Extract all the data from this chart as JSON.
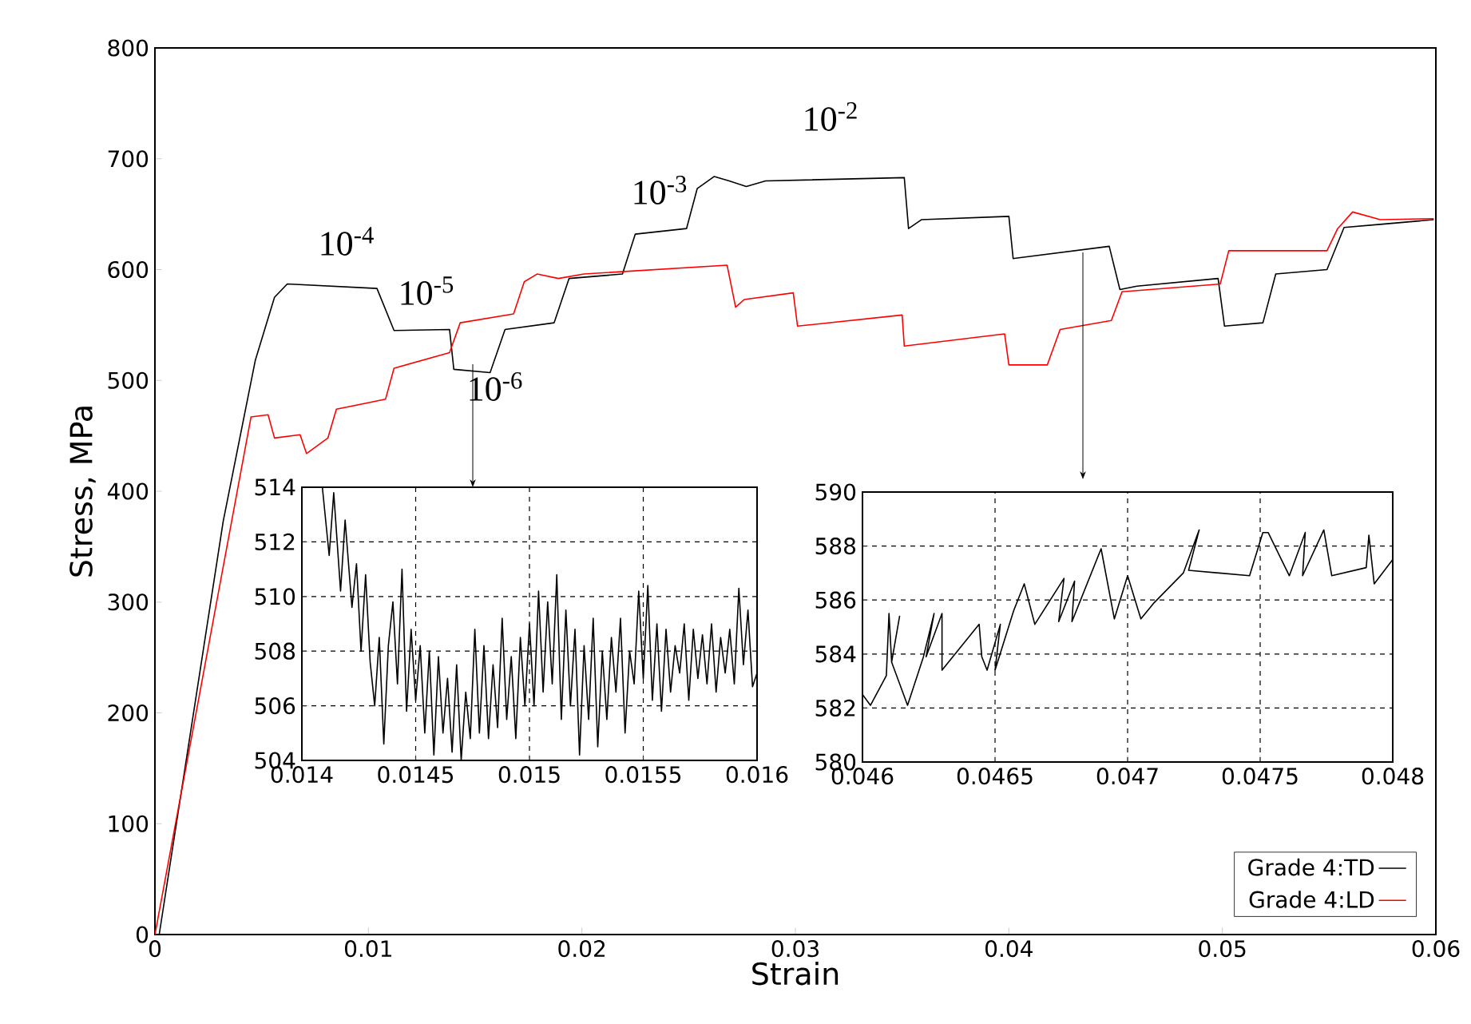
{
  "chart_data": [
    {
      "type": "line",
      "xlabel": "Strain",
      "ylabel": "Stress, MPa",
      "xlim": [
        0,
        0.06
      ],
      "ylim": [
        0,
        800
      ],
      "xticks": [
        0,
        0.01,
        0.02,
        0.03,
        0.04,
        0.05,
        0.06
      ],
      "yticks": [
        0,
        100,
        200,
        300,
        400,
        500,
        600,
        700,
        800
      ],
      "legend": "bottom right",
      "series": [
        {
          "name": "Grade 4:TD",
          "color": "#000000",
          "x": [
            0.0002,
            0.0032,
            0.0047,
            0.0056,
            0.0062,
            0.0104,
            0.0112,
            0.0138,
            0.014,
            0.0157,
            0.0164,
            0.0187,
            0.0194,
            0.0219,
            0.0225,
            0.0249,
            0.0254,
            0.0262,
            0.0269,
            0.0277,
            0.0286,
            0.0351,
            0.0353,
            0.0359,
            0.04,
            0.0402,
            0.0447,
            0.0452,
            0.046,
            0.0498,
            0.0501,
            0.0519,
            0.0525,
            0.0549,
            0.0557,
            0.0575,
            0.0599
          ],
          "values": [
            0,
            373,
            518,
            575,
            587,
            583,
            545,
            546,
            510,
            507,
            546,
            552,
            592,
            596,
            632,
            637,
            673,
            684,
            680,
            675,
            680,
            683,
            637,
            645,
            648,
            610,
            621,
            582,
            585,
            592,
            549,
            552,
            596,
            600,
            638,
            641,
            645
          ]
        },
        {
          "name": "Grade 4:LD",
          "color": "#ff0000",
          "x": [
            0,
            0.0045,
            0.0053,
            0.0056,
            0.0068,
            0.0071,
            0.0081,
            0.0085,
            0.0108,
            0.0112,
            0.0138,
            0.0143,
            0.0168,
            0.0173,
            0.0179,
            0.0189,
            0.0201,
            0.0268,
            0.0272,
            0.0276,
            0.0299,
            0.0301,
            0.035,
            0.0351,
            0.0398,
            0.04,
            0.0418,
            0.0424,
            0.0448,
            0.0453,
            0.0499,
            0.0503,
            0.0549,
            0.0554,
            0.0561,
            0.0574,
            0.0599
          ],
          "values": [
            0,
            467,
            469,
            448,
            451,
            434,
            448,
            474,
            483,
            511,
            525,
            552,
            560,
            589,
            596,
            592,
            596,
            604,
            566,
            573,
            579,
            549,
            559,
            531,
            542,
            514,
            514,
            546,
            554,
            580,
            587,
            617,
            617,
            637,
            652,
            645,
            646
          ]
        }
      ],
      "annotations": [
        "10$^{-4}$",
        "10$^{-5}$",
        "10$^{-6}$",
        "10$^{-3}$",
        "10$^{-2}$"
      ]
    },
    {
      "type": "line",
      "xlim": [
        0.014,
        0.016
      ],
      "ylim": [
        504,
        514
      ],
      "xticks": [
        0.014,
        0.0145,
        0.015,
        0.0155,
        0.016
      ],
      "yticks": [
        504,
        506,
        508,
        510,
        512,
        514
      ],
      "grid": true,
      "series": [
        {
          "color": "#000000",
          "x": [
            0.01409,
            0.01412,
            0.01414,
            0.01417,
            0.01419,
            0.01422,
            0.01424,
            0.01426,
            0.01428,
            0.0143,
            0.01432,
            0.01434,
            0.01436,
            0.01438,
            0.0144,
            0.01442,
            0.01444,
            0.01446,
            0.01448,
            0.0145,
            0.01452,
            0.01454,
            0.01456,
            0.01458,
            0.0146,
            0.01462,
            0.01464,
            0.01466,
            0.01468,
            0.0147,
            0.01472,
            0.01474,
            0.01476,
            0.01478,
            0.0148,
            0.01482,
            0.01484,
            0.01486,
            0.01488,
            0.0149,
            0.01492,
            0.01494,
            0.01496,
            0.01498,
            0.015,
            0.01502,
            0.01504,
            0.01506,
            0.01508,
            0.0151,
            0.01512,
            0.01514,
            0.01516,
            0.01518,
            0.0152,
            0.01522,
            0.01524,
            0.01526,
            0.01528,
            0.0153,
            0.01532,
            0.01534,
            0.01536,
            0.01538,
            0.0154,
            0.01542,
            0.01544,
            0.01546,
            0.01548,
            0.0155,
            0.01552,
            0.01554,
            0.01556,
            0.01558,
            0.0156,
            0.01562,
            0.01564,
            0.01566,
            0.01568,
            0.0157,
            0.01572,
            0.01574,
            0.01576,
            0.01578,
            0.0158,
            0.01582,
            0.01584,
            0.01586,
            0.01588,
            0.0159,
            0.01592,
            0.01594,
            0.01596,
            0.01598,
            0.016
          ],
          "values": [
            514,
            511.5,
            513.8,
            510.2,
            512.8,
            509.6,
            511.2,
            508.0,
            510.8,
            507.6,
            506.0,
            508.5,
            504.6,
            508.2,
            509.8,
            506.8,
            511.0,
            505.8,
            508.8,
            506.2,
            508.2,
            505.0,
            508.0,
            504.2,
            507.8,
            505.0,
            507.0,
            504.3,
            507.5,
            504.0,
            506.5,
            504.8,
            508.8,
            505.0,
            508.2,
            504.8,
            507.5,
            505.2,
            509.2,
            505.5,
            507.8,
            504.8,
            508.5,
            506.0,
            509.0,
            506.0,
            510.2,
            506.5,
            509.8,
            506.8,
            510.8,
            505.5,
            509.5,
            506.0,
            508.8,
            504.2,
            508.2,
            505.5,
            509.2,
            504.5,
            508.0,
            505.5,
            508.5,
            506.5,
            509.2,
            505.0,
            508.0,
            506.8,
            510.2,
            507.0,
            510.4,
            506.2,
            509.0,
            505.8,
            508.8,
            506.5,
            508.2,
            507.2,
            509.0,
            506.2,
            508.8,
            507.0,
            508.6,
            506.8,
            509.0,
            506.5,
            508.5,
            507.2,
            508.8,
            506.8,
            510.3,
            507.5,
            509.5,
            506.7,
            507.2
          ]
        }
      ]
    },
    {
      "type": "line",
      "xlim": [
        0.046,
        0.048
      ],
      "ylim": [
        580,
        590
      ],
      "xticks": [
        0.046,
        0.0465,
        0.047,
        0.0475,
        0.048
      ],
      "yticks": [
        580,
        582,
        584,
        586,
        588,
        590
      ],
      "grid": true,
      "series": [
        {
          "color": "#000000",
          "x": [
            0.046,
            0.04603,
            0.04609,
            0.0461,
            0.04611,
            0.04614,
            0.04611,
            0.04617,
            0.04623,
            0.04627,
            0.04624,
            0.0463,
            0.0463,
            0.04644,
            0.04645,
            0.04647,
            0.04652,
            0.0465,
            0.04657,
            0.04661,
            0.04665,
            0.04676,
            0.04674,
            0.0468,
            0.04679,
            0.0469,
            0.04695,
            0.047,
            0.04705,
            0.0471,
            0.04721,
            0.04727,
            0.04723,
            0.04746,
            0.04751,
            0.04753,
            0.04761,
            0.04767,
            0.04766,
            0.04774,
            0.04777,
            0.0479,
            0.04791,
            0.04793,
            0.048
          ],
          "values": [
            582.5,
            582.1,
            583.2,
            585.5,
            583.7,
            585.4,
            583.7,
            582.1,
            583.9,
            585.5,
            583.9,
            585.5,
            583.4,
            585.1,
            583.9,
            583.4,
            585.1,
            583.4,
            585.6,
            586.6,
            585.1,
            586.8,
            585.2,
            586.7,
            585.2,
            587.9,
            585.3,
            586.9,
            585.3,
            585.9,
            587.0,
            588.6,
            587.1,
            586.9,
            588.5,
            588.5,
            586.9,
            588.5,
            586.9,
            588.6,
            586.9,
            587.2,
            588.4,
            586.6,
            587.5
          ]
        }
      ]
    }
  ]
}
